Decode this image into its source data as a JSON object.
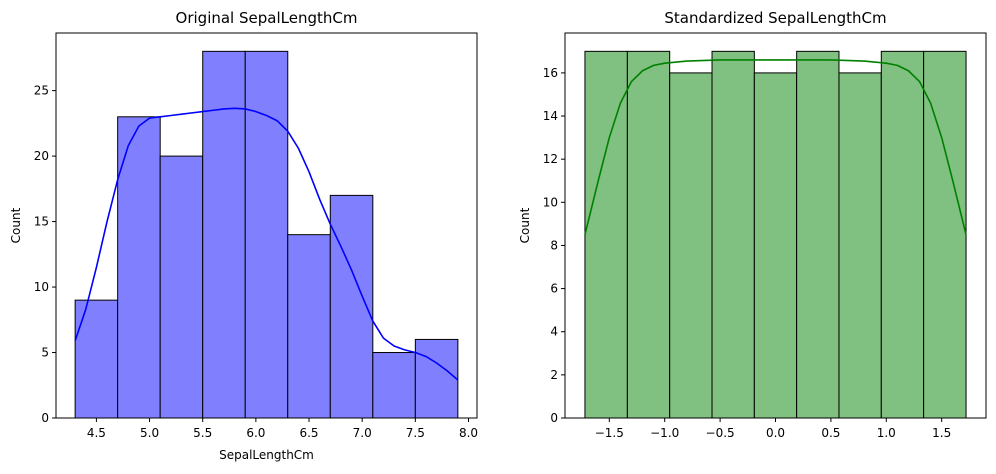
{
  "chart_data": [
    {
      "type": "histogram",
      "title": "Original SepalLengthCm",
      "xlabel": "SepalLengthCm",
      "ylabel": "Count",
      "bar_color": "#8080ff",
      "kde_color": "#0000ff",
      "edge_color": "#000000",
      "xlim": [
        4.12,
        8.08
      ],
      "ylim": [
        0,
        29.4
      ],
      "xticks": [
        4.5,
        5.0,
        5.5,
        6.0,
        6.5,
        7.0,
        7.5,
        8.0
      ],
      "xtick_labels": [
        "4.5",
        "5.0",
        "5.5",
        "6.0",
        "6.5",
        "7.0",
        "7.5",
        "8.0"
      ],
      "yticks": [
        0,
        5,
        10,
        15,
        20,
        25
      ],
      "ytick_labels": [
        "0",
        "5",
        "10",
        "15",
        "20",
        "25"
      ],
      "bins": [
        {
          "x0": 4.3,
          "x1": 4.7,
          "count": 9
        },
        {
          "x0": 4.7,
          "x1": 5.1,
          "count": 23
        },
        {
          "x0": 5.1,
          "x1": 5.5,
          "count": 20
        },
        {
          "x0": 5.5,
          "x1": 5.9,
          "count": 28
        },
        {
          "x0": 5.9,
          "x1": 6.3,
          "count": 28
        },
        {
          "x0": 6.3,
          "x1": 6.7,
          "count": 14
        },
        {
          "x0": 6.7,
          "x1": 7.1,
          "count": 17
        },
        {
          "x0": 7.1,
          "x1": 7.5,
          "count": 5
        },
        {
          "x0": 7.5,
          "x1": 7.9,
          "count": 6
        }
      ],
      "kde": [
        [
          4.3,
          5.9
        ],
        [
          4.4,
          8.3
        ],
        [
          4.5,
          11.5
        ],
        [
          4.6,
          15.0
        ],
        [
          4.7,
          18.2
        ],
        [
          4.8,
          20.8
        ],
        [
          4.9,
          22.3
        ],
        [
          5.0,
          22.9
        ],
        [
          5.1,
          23.0
        ],
        [
          5.2,
          23.1
        ],
        [
          5.3,
          23.2
        ],
        [
          5.4,
          23.3
        ],
        [
          5.5,
          23.4
        ],
        [
          5.6,
          23.5
        ],
        [
          5.7,
          23.6
        ],
        [
          5.8,
          23.65
        ],
        [
          5.9,
          23.6
        ],
        [
          6.0,
          23.4
        ],
        [
          6.1,
          23.1
        ],
        [
          6.2,
          22.7
        ],
        [
          6.3,
          21.9
        ],
        [
          6.4,
          20.6
        ],
        [
          6.5,
          18.8
        ],
        [
          6.6,
          16.7
        ],
        [
          6.7,
          14.8
        ],
        [
          6.8,
          13.1
        ],
        [
          6.9,
          11.3
        ],
        [
          7.0,
          9.3
        ],
        [
          7.1,
          7.4
        ],
        [
          7.2,
          6.1
        ],
        [
          7.3,
          5.5
        ],
        [
          7.4,
          5.2
        ],
        [
          7.5,
          5.0
        ],
        [
          7.6,
          4.7
        ],
        [
          7.7,
          4.2
        ],
        [
          7.8,
          3.6
        ],
        [
          7.9,
          2.9
        ]
      ]
    },
    {
      "type": "histogram",
      "title": "Standardized SepalLengthCm",
      "xlabel": "",
      "ylabel": "Count",
      "bar_color": "#80c080",
      "kde_color": "#008000",
      "edge_color": "#000000",
      "xlim": [
        -1.9,
        1.9
      ],
      "ylim": [
        0,
        17.85
      ],
      "xticks": [
        -1.5,
        -1.0,
        -0.5,
        0.0,
        0.5,
        1.0,
        1.5
      ],
      "xtick_labels": [
        "−1.5",
        "−1.0",
        "−0.5",
        "0.0",
        "0.5",
        "1.0",
        "1.5"
      ],
      "yticks": [
        0,
        2,
        4,
        6,
        8,
        10,
        12,
        14,
        16
      ],
      "ytick_labels": [
        "0",
        "2",
        "4",
        "6",
        "8",
        "10",
        "12",
        "14",
        "16"
      ],
      "bins": [
        {
          "x0": -1.72,
          "x1": -1.337,
          "count": 17
        },
        {
          "x0": -1.337,
          "x1": -0.955,
          "count": 17
        },
        {
          "x0": -0.955,
          "x1": -0.573,
          "count": 16
        },
        {
          "x0": -0.573,
          "x1": -0.191,
          "count": 17
        },
        {
          "x0": -0.191,
          "x1": 0.191,
          "count": 16
        },
        {
          "x0": 0.191,
          "x1": 0.573,
          "count": 17
        },
        {
          "x0": 0.573,
          "x1": 0.955,
          "count": 16
        },
        {
          "x0": 0.955,
          "x1": 1.337,
          "count": 17
        },
        {
          "x0": 1.337,
          "x1": 1.72,
          "count": 17
        }
      ],
      "kde": [
        [
          -1.72,
          8.5
        ],
        [
          -1.6,
          11.0
        ],
        [
          -1.5,
          13.0
        ],
        [
          -1.4,
          14.6
        ],
        [
          -1.3,
          15.6
        ],
        [
          -1.2,
          16.1
        ],
        [
          -1.1,
          16.35
        ],
        [
          -1.0,
          16.45
        ],
        [
          -0.8,
          16.55
        ],
        [
          -0.5,
          16.6
        ],
        [
          0.0,
          16.6
        ],
        [
          0.5,
          16.6
        ],
        [
          0.8,
          16.55
        ],
        [
          1.0,
          16.45
        ],
        [
          1.1,
          16.35
        ],
        [
          1.2,
          16.1
        ],
        [
          1.3,
          15.6
        ],
        [
          1.4,
          14.6
        ],
        [
          1.5,
          13.0
        ],
        [
          1.6,
          11.0
        ],
        [
          1.72,
          8.5
        ]
      ]
    }
  ]
}
